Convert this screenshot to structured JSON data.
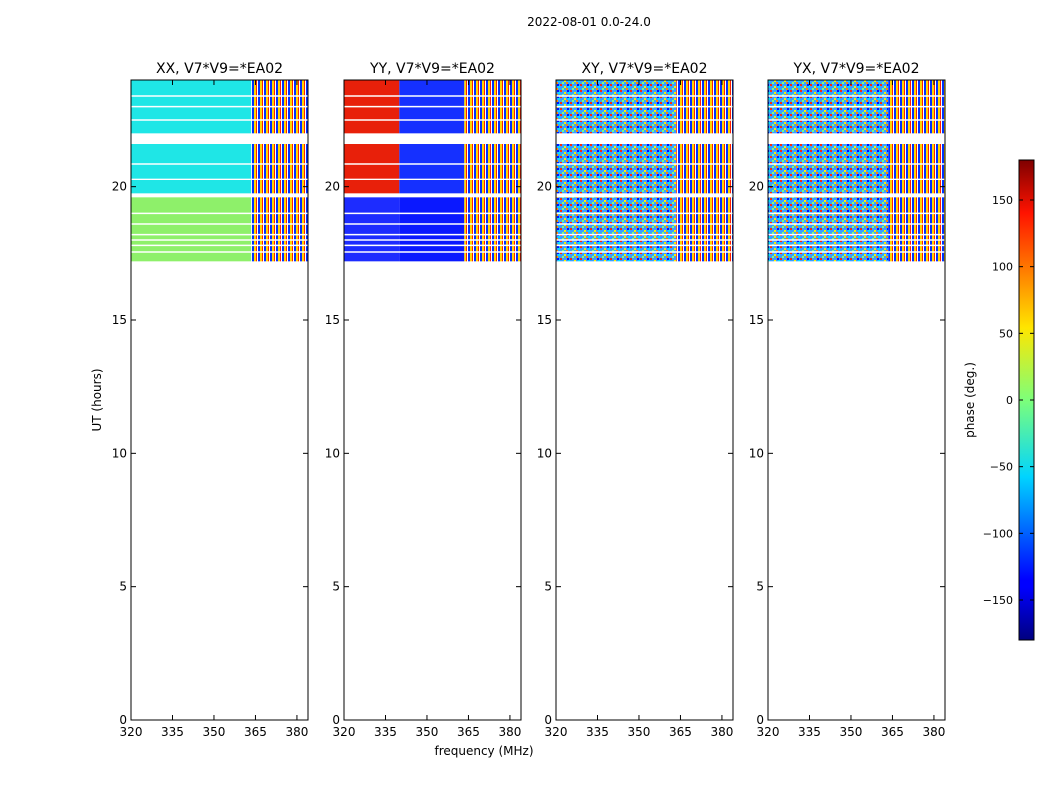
{
  "chart_data": {
    "type": "heatmap",
    "title": "2022-08-01 0.0-24.0",
    "xlabel": "frequency (MHz)",
    "ylabel": "UT (hours)",
    "xlim": [
      320,
      384
    ],
    "ylim": [
      0,
      24
    ],
    "x_ticks": [
      320,
      335,
      350,
      365,
      380
    ],
    "y_ticks": [
      0,
      5,
      10,
      15,
      20
    ],
    "colorbar": {
      "label": "phase (deg.)",
      "colormap": "jet",
      "range": [
        -180,
        180
      ],
      "ticks": [
        150,
        100,
        50,
        0,
        -50,
        -100,
        -150
      ],
      "tick_labels": [
        "150",
        "100",
        "50",
        "0",
        "−50",
        "−100",
        "−150"
      ]
    },
    "panels": [
      {
        "title": "XX, V7*V9=*EA02",
        "pol": "XX"
      },
      {
        "title": "YY, V7*V9=*EA02",
        "pol": "YY"
      },
      {
        "title": "XY, V7*V9=*EA02",
        "pol": "XY"
      },
      {
        "title": "YX, V7*V9=*EA02",
        "pol": "YX"
      }
    ],
    "data_time_blocks": [
      {
        "start": 17.2,
        "end": 19.6
      },
      {
        "start": 19.75,
        "end": 20.25
      },
      {
        "start": 20.3,
        "end": 21.6
      },
      {
        "start": 22.0,
        "end": 24.0
      }
    ],
    "gap_lines": [
      17.55,
      17.8,
      18.0,
      18.2,
      18.6,
      19.0,
      20.85,
      22.5,
      23.0,
      23.4
    ]
  }
}
